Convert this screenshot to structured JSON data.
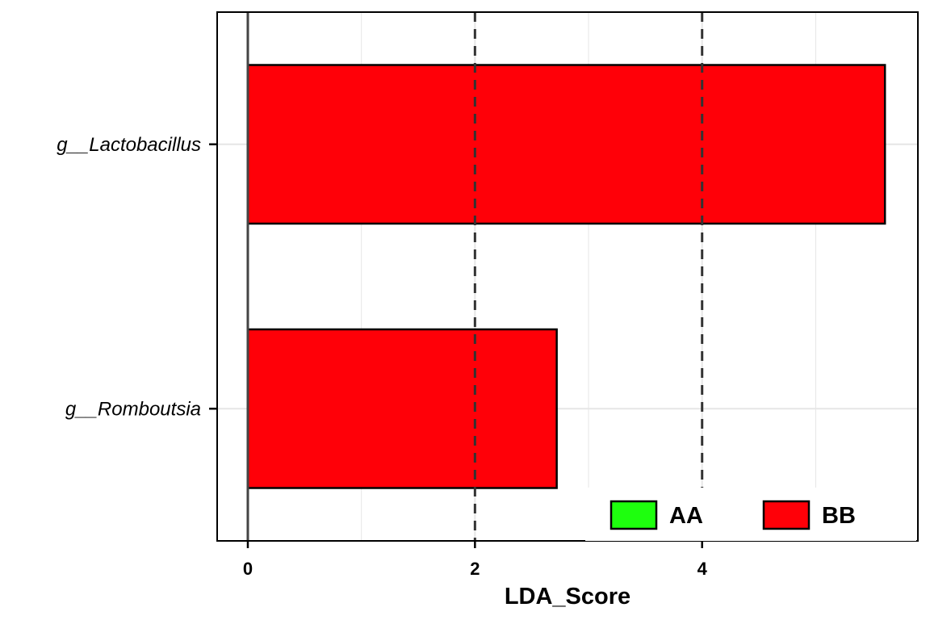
{
  "chart_data": {
    "type": "bar",
    "orientation": "horizontal",
    "title": "",
    "xlabel": "LDA_Score",
    "ylabel": "",
    "categories": [
      "g__Lactobacillus",
      "g__Romboutsia"
    ],
    "values": [
      5.61,
      2.72
    ],
    "groups": [
      "BB",
      "BB"
    ],
    "xlim": [
      -0.27,
      5.9
    ],
    "xticks": [
      0,
      2,
      4
    ],
    "xtick_labels": [
      "0",
      "2",
      "4"
    ],
    "reference_lines": [
      {
        "x": 0,
        "style": "solid"
      },
      {
        "x": 2,
        "style": "dashed"
      },
      {
        "x": 4,
        "style": "dashed"
      }
    ],
    "grid": true,
    "legend": {
      "placement": "bottom-right",
      "entries": [
        {
          "name": "AA",
          "color": "#1EFF0E"
        },
        {
          "name": "BB",
          "color": "#FF0008"
        }
      ]
    }
  }
}
